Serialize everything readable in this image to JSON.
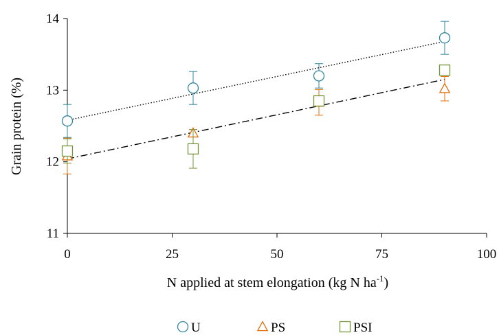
{
  "chart_data": {
    "type": "scatter",
    "title": "",
    "xlabel": {
      "main": "N applied at stem elongation (kg N ha",
      "sup": "-1",
      "end": ")"
    },
    "ylabel": "Grain protein (%)",
    "xlim": [
      0,
      100
    ],
    "ylim": [
      11,
      14
    ],
    "xticks": [
      0,
      25,
      50,
      75,
      100
    ],
    "yticks": [
      11,
      12,
      13,
      14
    ],
    "xtick_labels": [
      "0",
      "25",
      "50",
      "75",
      "100"
    ],
    "ytick_labels": [
      "11",
      "12",
      "13",
      "14"
    ],
    "grid": false,
    "legend_position": "bottom",
    "series": [
      {
        "name": "U",
        "marker": "circle",
        "color": "#31859c",
        "x": [
          0,
          30,
          60,
          90
        ],
        "y": [
          12.57,
          13.03,
          13.2,
          13.73
        ],
        "err": [
          0.23,
          0.23,
          0.17,
          0.23
        ]
      },
      {
        "name": "PS",
        "marker": "triangle",
        "color": "#e36c09",
        "x": [
          0,
          30,
          60,
          90
        ],
        "y": [
          12.08,
          12.4,
          12.83,
          13.02
        ],
        "err": [
          0.25,
          0.05,
          0.18,
          0.17
        ]
      },
      {
        "name": "PSI",
        "marker": "square",
        "color": "#77933c",
        "x": [
          0,
          30,
          60,
          90
        ],
        "y": [
          12.15,
          12.18,
          12.85,
          13.28
        ],
        "err": [
          0.17,
          0.27,
          0.05,
          0.05
        ]
      }
    ],
    "trendlines": [
      {
        "style": "dotted",
        "color": "#000000",
        "x": [
          0,
          90
        ],
        "y": [
          12.58,
          13.68
        ]
      },
      {
        "style": "dash-dot",
        "color": "#000000",
        "x": [
          0,
          90
        ],
        "y": [
          12.04,
          13.15
        ]
      }
    ]
  }
}
